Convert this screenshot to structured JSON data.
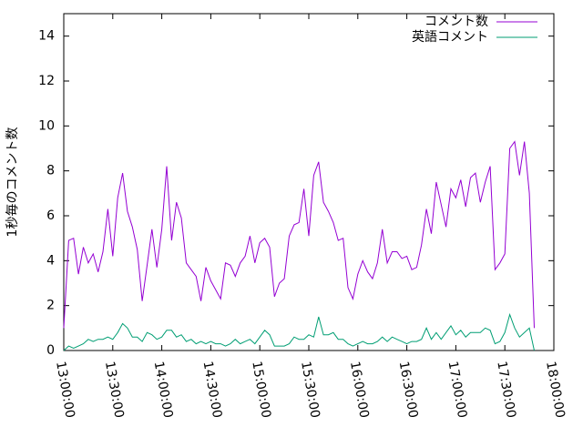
{
  "chart_data": {
    "type": "line",
    "ylabel": "1秒毎のコメント数",
    "x": [
      "13:00:00",
      "13:03:00",
      "13:06:00",
      "13:09:00",
      "13:12:00",
      "13:15:00",
      "13:18:00",
      "13:21:00",
      "13:24:00",
      "13:27:00",
      "13:30:00",
      "13:33:00",
      "13:36:00",
      "13:39:00",
      "13:42:00",
      "13:45:00",
      "13:48:00",
      "13:51:00",
      "13:54:00",
      "13:57:00",
      "14:00:00",
      "14:03:00",
      "14:06:00",
      "14:09:00",
      "14:12:00",
      "14:15:00",
      "14:18:00",
      "14:21:00",
      "14:24:00",
      "14:27:00",
      "14:30:00",
      "14:33:00",
      "14:36:00",
      "14:39:00",
      "14:42:00",
      "14:45:00",
      "14:48:00",
      "14:51:00",
      "14:54:00",
      "14:57:00",
      "15:00:00",
      "15:03:00",
      "15:06:00",
      "15:09:00",
      "15:12:00",
      "15:15:00",
      "15:18:00",
      "15:21:00",
      "15:24:00",
      "15:27:00",
      "15:30:00",
      "15:33:00",
      "15:36:00",
      "15:39:00",
      "15:42:00",
      "15:45:00",
      "15:48:00",
      "15:51:00",
      "15:54:00",
      "15:57:00",
      "16:00:00",
      "16:03:00",
      "16:06:00",
      "16:09:00",
      "16:12:00",
      "16:15:00",
      "16:18:00",
      "16:21:00",
      "16:24:00",
      "16:27:00",
      "16:30:00",
      "16:33:00",
      "16:36:00",
      "16:39:00",
      "16:42:00",
      "16:45:00",
      "16:48:00",
      "16:51:00",
      "16:54:00",
      "16:57:00",
      "17:00:00",
      "17:03:00",
      "17:06:00",
      "17:09:00",
      "17:12:00",
      "17:15:00",
      "17:18:00",
      "17:21:00",
      "17:24:00",
      "17:27:00",
      "17:30:00",
      "17:33:00",
      "17:36:00",
      "17:39:00",
      "17:42:00",
      "17:45:00",
      "17:48:00"
    ],
    "series": [
      {
        "name": "コメント数",
        "color": "#9400d3",
        "values": [
          1.0,
          4.9,
          5.0,
          3.4,
          4.6,
          3.9,
          4.3,
          3.5,
          4.4,
          6.3,
          4.2,
          6.8,
          7.9,
          6.2,
          5.5,
          4.5,
          2.2,
          3.8,
          5.4,
          3.7,
          5.4,
          8.2,
          4.9,
          6.6,
          5.9,
          3.9,
          3.6,
          3.3,
          2.2,
          3.7,
          3.1,
          2.7,
          2.3,
          3.9,
          3.8,
          3.3,
          3.9,
          4.2,
          5.1,
          3.9,
          4.8,
          5.0,
          4.6,
          2.4,
          3.0,
          3.2,
          5.1,
          5.6,
          5.7,
          7.2,
          5.1,
          7.8,
          8.4,
          6.6,
          6.2,
          5.7,
          4.9,
          5.0,
          2.8,
          2.3,
          3.4,
          4.0,
          3.5,
          3.2,
          3.9,
          5.4,
          3.9,
          4.4,
          4.4,
          4.1,
          4.2,
          3.6,
          3.7,
          4.7,
          6.3,
          5.2,
          7.5,
          6.5,
          5.5,
          7.2,
          6.8,
          7.6,
          6.4,
          7.7,
          7.9,
          6.6,
          7.5,
          8.2,
          3.6,
          3.9,
          4.3,
          9.0,
          9.3,
          7.8,
          9.3,
          7.0,
          1.0
        ]
      },
      {
        "name": "英語コメント",
        "color": "#009e73",
        "values": [
          0.0,
          0.2,
          0.1,
          0.2,
          0.3,
          0.5,
          0.4,
          0.5,
          0.5,
          0.6,
          0.5,
          0.8,
          1.2,
          1.0,
          0.6,
          0.6,
          0.4,
          0.8,
          0.7,
          0.5,
          0.6,
          0.9,
          0.9,
          0.6,
          0.7,
          0.4,
          0.5,
          0.3,
          0.4,
          0.3,
          0.4,
          0.3,
          0.3,
          0.2,
          0.3,
          0.5,
          0.3,
          0.4,
          0.5,
          0.3,
          0.6,
          0.9,
          0.7,
          0.2,
          0.2,
          0.2,
          0.3,
          0.6,
          0.5,
          0.5,
          0.7,
          0.6,
          1.5,
          0.7,
          0.7,
          0.8,
          0.5,
          0.5,
          0.3,
          0.2,
          0.3,
          0.4,
          0.3,
          0.3,
          0.4,
          0.6,
          0.4,
          0.6,
          0.5,
          0.4,
          0.3,
          0.4,
          0.4,
          0.5,
          1.0,
          0.5,
          0.8,
          0.5,
          0.8,
          1.1,
          0.7,
          0.9,
          0.6,
          0.8,
          0.8,
          0.8,
          1.0,
          0.9,
          0.3,
          0.4,
          0.8,
          1.6,
          1.0,
          0.6,
          0.8,
          1.0,
          0.0
        ]
      }
    ],
    "xlim": [
      "13:00:00",
      "18:00:00"
    ],
    "xticks": [
      "13:00:00",
      "13:30:00",
      "14:00:00",
      "14:30:00",
      "15:00:00",
      "15:30:00",
      "16:00:00",
      "16:30:00",
      "17:00:00",
      "17:30:00",
      "18:00:00"
    ],
    "ylim": [
      0,
      15
    ],
    "yticks": [
      0,
      2,
      4,
      6,
      8,
      10,
      12,
      14
    ],
    "legend": "top-right"
  }
}
